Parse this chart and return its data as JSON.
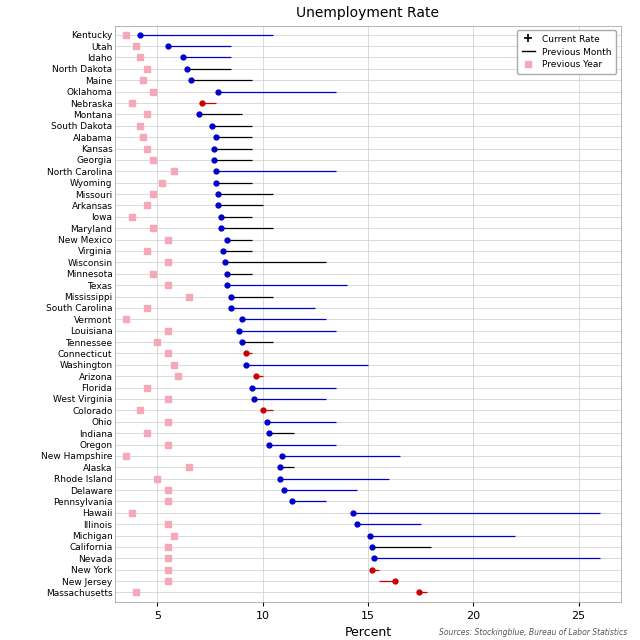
{
  "title": "Unemployment Rate",
  "xlabel": "Percent",
  "source": "Sources: Stockingblue, Bureau of Labor Statistics",
  "states": [
    "Kentucky",
    "Utah",
    "Idaho",
    "North Dakota",
    "Maine",
    "Oklahoma",
    "Nebraska",
    "Montana",
    "South Dakota",
    "Alabama",
    "Kansas",
    "Georgia",
    "North Carolina",
    "Wyoming",
    "Missouri",
    "Arkansas",
    "Iowa",
    "Maryland",
    "New Mexico",
    "Virginia",
    "Wisconsin",
    "Minnesota",
    "Texas",
    "Mississippi",
    "South Carolina",
    "Vermont",
    "Louisiana",
    "Tennessee",
    "Connecticut",
    "Washington",
    "Arizona",
    "Florida",
    "West Virginia",
    "Colorado",
    "Ohio",
    "Indiana",
    "Oregon",
    "New Hampshire",
    "Alaska",
    "Rhode Island",
    "Delaware",
    "Pennsylvania",
    "Hawaii",
    "Illinois",
    "Michigan",
    "California",
    "Nevada",
    "New York",
    "New Jersey",
    "Massachusetts"
  ],
  "current_rate": [
    4.2,
    5.5,
    6.2,
    6.4,
    6.6,
    7.9,
    7.1,
    7.0,
    7.6,
    7.8,
    7.7,
    7.7,
    7.8,
    7.8,
    7.9,
    7.9,
    8.0,
    8.0,
    8.3,
    8.1,
    8.2,
    8.3,
    8.3,
    8.5,
    8.5,
    9.0,
    8.9,
    9.0,
    9.2,
    9.2,
    9.7,
    9.5,
    9.6,
    10.0,
    10.2,
    10.3,
    10.3,
    10.9,
    10.8,
    10.8,
    11.0,
    11.4,
    14.3,
    14.5,
    15.1,
    15.2,
    15.3,
    15.2,
    16.3,
    17.4
  ],
  "dot_color": [
    "#0000cc",
    "#0000cc",
    "#0000cc",
    "#0000cc",
    "#0000cc",
    "#0000cc",
    "#cc0000",
    "#0000cc",
    "#0000cc",
    "#0000cc",
    "#0000cc",
    "#0000cc",
    "#0000cc",
    "#0000cc",
    "#0000cc",
    "#0000cc",
    "#0000cc",
    "#0000cc",
    "#0000cc",
    "#0000cc",
    "#0000cc",
    "#0000cc",
    "#0000cc",
    "#0000cc",
    "#0000cc",
    "#0000cc",
    "#0000cc",
    "#0000cc",
    "#cc0000",
    "#0000cc",
    "#cc0000",
    "#0000cc",
    "#0000cc",
    "#cc0000",
    "#0000cc",
    "#0000cc",
    "#0000cc",
    "#0000cc",
    "#0000cc",
    "#0000cc",
    "#0000cc",
    "#0000cc",
    "#0000cc",
    "#0000cc",
    "#0000cc",
    "#0000cc",
    "#0000cc",
    "#cc0000",
    "#cc0000",
    "#cc0000"
  ],
  "line_end": [
    10.5,
    8.5,
    8.5,
    8.5,
    9.5,
    13.5,
    7.8,
    9.0,
    9.5,
    9.5,
    9.5,
    9.5,
    13.5,
    9.5,
    10.5,
    10.0,
    9.5,
    10.5,
    9.5,
    9.5,
    13.0,
    9.5,
    14.0,
    10.5,
    12.5,
    13.0,
    13.5,
    10.5,
    9.5,
    15.0,
    10.0,
    13.5,
    13.0,
    10.5,
    13.5,
    11.5,
    13.5,
    16.5,
    11.5,
    16.0,
    14.5,
    13.0,
    26.0,
    17.5,
    22.0,
    18.0,
    26.0,
    15.5,
    15.5,
    17.8
  ],
  "line_color": [
    "#0000cc",
    "#0000cc",
    "#0000cc",
    "#000000",
    "#000000",
    "#0000cc",
    "#cc0000",
    "#000000",
    "#000000",
    "#000000",
    "#000000",
    "#000000",
    "#0000cc",
    "#000000",
    "#000000",
    "#000000",
    "#000000",
    "#000000",
    "#000000",
    "#000000",
    "#000000",
    "#000000",
    "#0000cc",
    "#000000",
    "#0000cc",
    "#0000cc",
    "#0000cc",
    "#000000",
    "#cc0000",
    "#0000cc",
    "#cc0000",
    "#0000cc",
    "#0000cc",
    "#cc0000",
    "#0000cc",
    "#000000",
    "#0000cc",
    "#0000cc",
    "#000000",
    "#0000cc",
    "#0000cc",
    "#0000cc",
    "#0000cc",
    "#0000cc",
    "#0000cc",
    "#000000",
    "#0000cc",
    "#cc0000",
    "#cc0000",
    "#cc0000"
  ],
  "prev_year": [
    3.5,
    4.0,
    4.2,
    4.5,
    4.3,
    4.8,
    3.8,
    4.5,
    4.2,
    4.3,
    4.5,
    4.8,
    5.8,
    5.2,
    4.8,
    4.5,
    3.8,
    4.8,
    5.5,
    4.5,
    5.5,
    4.8,
    5.5,
    6.5,
    4.5,
    3.5,
    5.5,
    5.0,
    5.5,
    5.8,
    6.0,
    4.5,
    5.5,
    4.2,
    5.5,
    4.5,
    5.5,
    3.5,
    6.5,
    5.0,
    5.5,
    5.5,
    3.8,
    5.5,
    5.8,
    5.5,
    5.5,
    5.5,
    5.5,
    4.0
  ],
  "xlim": [
    3.0,
    27.0
  ],
  "xticks": [
    5,
    10,
    15,
    20,
    25
  ],
  "bg_color": "#ffffff",
  "grid_color": "#cccccc",
  "title_fontsize": 10,
  "label_fontsize": 6.5,
  "xlabel_fontsize": 9
}
